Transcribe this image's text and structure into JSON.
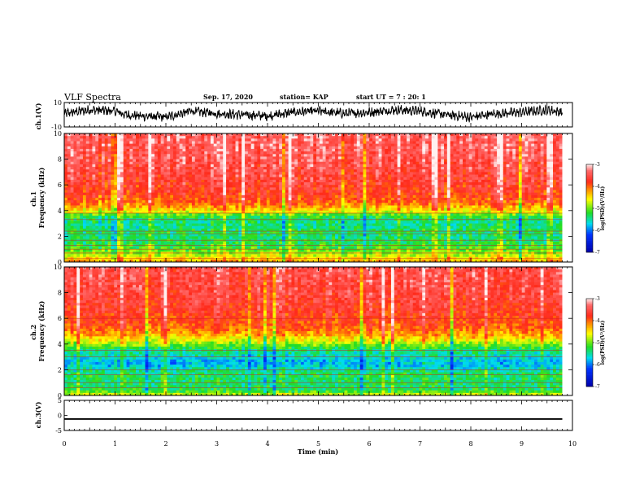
{
  "header": {
    "title": "VLF Spectra",
    "date": "Sep. 17, 2020",
    "station": "station= KAP",
    "start": "start UT =  7 : 20: 1"
  },
  "colors": {
    "low": "#0000aa",
    "mid_low": "#00ddee",
    "mid": "#22dd22",
    "mid_high": "#ffff00",
    "high": "#ff2a1a",
    "max": "#fff0f0",
    "waveform": "#000000"
  },
  "chart_data": [
    {
      "type": "line",
      "panel": "ch1-waveform",
      "ylabel": "ch.1(V)",
      "ylim": [
        -10,
        10
      ],
      "yticks": [
        "10",
        "-10"
      ],
      "xlim": [
        0,
        10
      ],
      "x_unit": "min",
      "trend": {
        "x": [
          0,
          0.5,
          1,
          1.2,
          1.5,
          2,
          2.5,
          3,
          3.5,
          4,
          4.5,
          5,
          5.5,
          6,
          6.5,
          7,
          7.5,
          8,
          8.5,
          9,
          9.5,
          9.8
        ],
        "y": [
          1,
          4,
          3,
          0,
          -1,
          -2,
          3,
          1,
          0,
          -1,
          2,
          3,
          1,
          2,
          4,
          3,
          0,
          -2,
          1,
          2,
          4,
          2
        ]
      }
    },
    {
      "type": "heatmap",
      "panel": "ch1-spectrogram",
      "ylabel": "ch.1\nFrequency  (kHz)",
      "yticks": [
        "0",
        "2",
        "4",
        "6",
        "8",
        "10"
      ],
      "ylim": [
        0,
        10
      ],
      "xlim": [
        0,
        9.8
      ],
      "colorbar": {
        "label": "log(PSD)(V²/Hz)",
        "ticks": [
          "-3",
          "-4",
          "-5",
          "-6",
          "-7"
        ],
        "range": [
          -7,
          -3
        ]
      },
      "band_profile_khz_to_logpsd": {
        "freq": [
          0,
          0.6,
          1,
          1.6,
          2,
          2.4,
          2.8,
          3.2,
          3.6,
          4,
          4.6,
          5.4,
          6.5,
          8,
          10
        ],
        "level": [
          -4.2,
          -4.8,
          -5.1,
          -5.3,
          -5.4,
          -5.3,
          -5.45,
          -5.4,
          -5.2,
          -4.5,
          -4.0,
          -3.75,
          -3.6,
          -3.45,
          -3.35
        ]
      },
      "horizontal_lines_khz": [
        0.3,
        0.7,
        1.0,
        1.3,
        1.7,
        2.2,
        2.4,
        3.3,
        3.8
      ]
    },
    {
      "type": "heatmap",
      "panel": "ch2-spectrogram",
      "ylabel": "ch.2\nFrequency  (kHz)",
      "yticks": [
        "0",
        "2",
        "4",
        "6",
        "8",
        "10"
      ],
      "ylim": [
        0,
        10
      ],
      "xlim": [
        0,
        9.8
      ],
      "colorbar": {
        "label": "log(PSD)(V²/Hz)",
        "ticks": [
          "-3",
          "-4",
          "-5",
          "-6",
          "-7"
        ],
        "range": [
          -7,
          -3
        ]
      },
      "band_profile_khz_to_logpsd": {
        "freq": [
          0,
          0.4,
          1,
          1.6,
          2,
          2.4,
          2.8,
          3.2,
          3.6,
          4,
          4.6,
          5.4,
          6.5,
          8,
          10
        ],
        "level": [
          -4.6,
          -5.3,
          -5.35,
          -5.3,
          -5.5,
          -5.8,
          -5.7,
          -5.5,
          -5.35,
          -4.9,
          -4.3,
          -3.9,
          -3.7,
          -3.55,
          -3.45
        ]
      },
      "horizontal_lines_khz": [
        0.6,
        1.0,
        1.6,
        2.0,
        3.0,
        3.5,
        6.0
      ]
    },
    {
      "type": "line",
      "panel": "ch3-waveform",
      "ylabel": "ch.3(V)",
      "ylim": [
        -5,
        5
      ],
      "yticks": [
        "5",
        "0",
        "-5"
      ],
      "xlim": [
        0,
        10
      ],
      "trend": {
        "x": [
          0,
          9.8
        ],
        "y": [
          -1.2,
          -1.2
        ]
      },
      "band_halfwidth": 0.25
    }
  ],
  "xaxis": {
    "label": "Time  (min)",
    "ticks": [
      "0",
      "1",
      "2",
      "3",
      "4",
      "5",
      "6",
      "7",
      "8",
      "9",
      "10"
    ],
    "xlim": [
      0,
      10
    ]
  }
}
